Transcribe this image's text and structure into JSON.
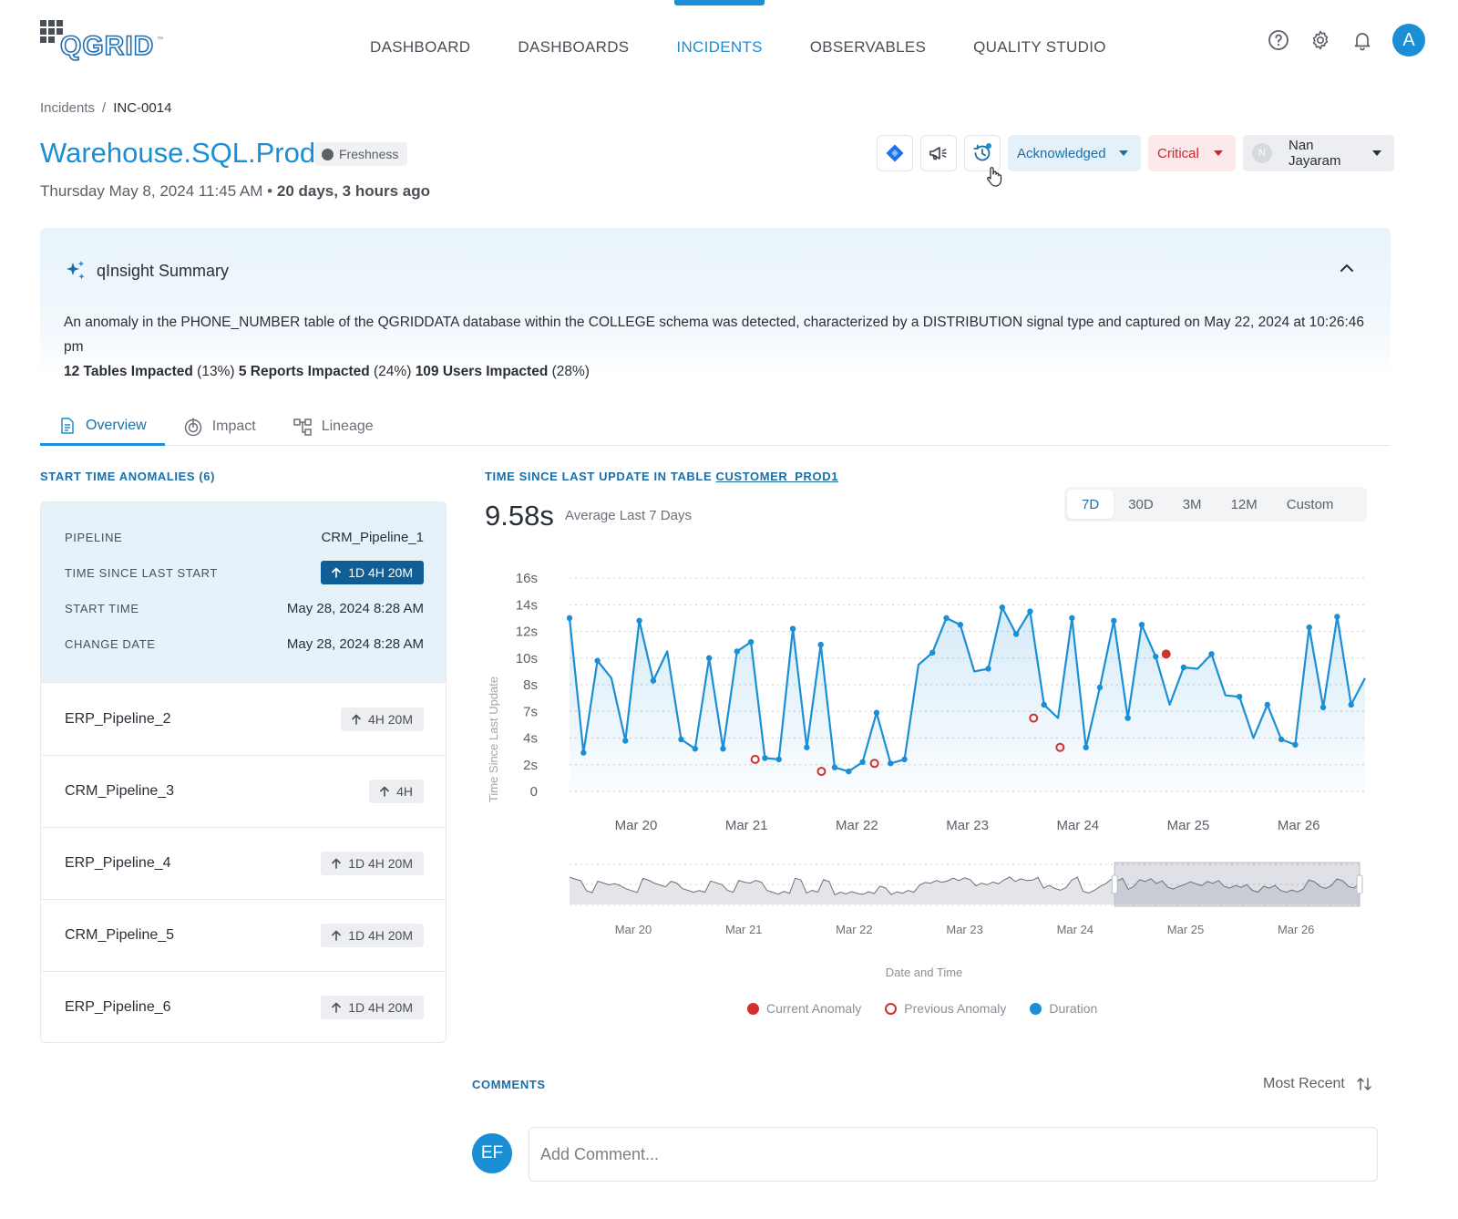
{
  "app": {
    "logo_text": "QGRID",
    "logo_tm": "™",
    "nav": [
      {
        "label": "DASHBOARD"
      },
      {
        "label": "DASHBOARDS"
      },
      {
        "label": "INCIDENTS"
      },
      {
        "label": "OBSERVABLES"
      },
      {
        "label": "QUALITY STUDIO"
      }
    ],
    "active_nav": "INCIDENTS",
    "icons": [
      "help-icon",
      "gear-icon",
      "bell-icon"
    ],
    "avatar_initial": "A"
  },
  "breadcrumb": {
    "parent": "Incidents",
    "sep": "/",
    "current": "INC-0014"
  },
  "incident": {
    "title": "Warehouse.SQL.Prod",
    "tag": "Freshness",
    "date": "Thursday May 8, 2024 11:45 AM",
    "bullet": "•",
    "age": "20 days, 3 hours ago",
    "status": "Acknowledged",
    "severity": "Critical",
    "assignee": "Nan Jayaram",
    "assignee_initial": "N"
  },
  "insight": {
    "title": "qInsight Summary",
    "text": "An anomaly in the PHONE_NUMBER table of the QGRIDDATA database within the COLLEGE schema was detected, characterized by a DISTRIBUTION signal type and captured on May 22, 2024 at 10:26:46 pm",
    "impacts": [
      {
        "label": "12 Tables Impacted",
        "pct": "(13%)"
      },
      {
        "label": "5 Reports Impacted",
        "pct": "(24%)"
      },
      {
        "label": "109 Users Impacted",
        "pct": "(28%)"
      }
    ]
  },
  "tabs": [
    {
      "label": "Overview",
      "icon": "document-icon"
    },
    {
      "label": "Impact",
      "icon": "impact-icon"
    },
    {
      "label": "Lineage",
      "icon": "lineage-icon"
    }
  ],
  "anomalies": {
    "title": "START TIME ANOMALIES (6)",
    "selected": {
      "pipeline_label": "PIPELINE",
      "pipeline": "CRM_Pipeline_1",
      "tsls_label": "TIME SINCE LAST START",
      "tsls": "1D 4H 20M",
      "start_label": "START TIME",
      "start": "May 28, 2024 8:28 AM",
      "change_label": "CHANGE DATE",
      "change": "May 28, 2024 8:28 AM"
    },
    "rows": [
      {
        "name": "ERP_Pipeline_2",
        "value": "4H 20M"
      },
      {
        "name": "CRM_Pipeline_3",
        "value": "4H"
      },
      {
        "name": "ERP_Pipeline_4",
        "value": "1D 4H 20M"
      },
      {
        "name": "CRM_Pipeline_5",
        "value": "1D 4H 20M"
      },
      {
        "name": "ERP_Pipeline_6",
        "value": "1D 4H 20M"
      }
    ]
  },
  "chart_section": {
    "title_prefix": "TIME SINCE LAST UPDATE IN TABLE",
    "table": "CUSTOMER_PROD1",
    "big_value": "9.58s",
    "big_label": "Average Last 7 Days",
    "ranges": [
      "7D",
      "30D",
      "3M",
      "12M",
      "Custom"
    ],
    "active_range": "7D"
  },
  "chart_data": {
    "type": "area",
    "ylabel": "Time Since Last Update",
    "xlabel": "Date and Time",
    "y_ticks": [
      "16s",
      "14s",
      "12s",
      "10s",
      "8s",
      "7s",
      "4s",
      "2s",
      "0"
    ],
    "x_ticks": [
      "Mar 20",
      "Mar 21",
      "Mar 22",
      "Mar 23",
      "Mar 24",
      "Mar 25",
      "Mar 26"
    ],
    "x_domain": [
      0,
      60
    ],
    "ylim": [
      0,
      16
    ],
    "grid": true,
    "legend_position": "bottom",
    "series": [
      {
        "name": "Duration",
        "values": [
          13,
          2.9,
          9.8,
          8.5,
          3.8,
          12.8,
          8.3,
          10.5,
          3.9,
          3.2,
          10,
          3.2,
          10.5,
          11.2,
          2.5,
          2.4,
          12.2,
          3.3,
          11,
          1.8,
          1.5,
          2.2,
          5.9,
          2.1,
          2.4,
          9.5,
          10.4,
          13,
          12.5,
          9,
          9.2,
          13.8,
          11.8,
          13.5,
          6.5,
          5.5,
          13,
          3.3,
          7.8,
          12.8,
          5.5,
          12.5,
          10.1,
          6.5,
          9.3,
          9.2,
          10.3,
          7.2,
          7.1,
          4,
          6.5,
          3.9,
          3.5,
          12.3,
          6.3,
          13.1,
          6.5,
          8.5
        ]
      },
      {
        "name": "Current Anomaly",
        "points": [
          [
            45,
            10.3
          ]
        ]
      },
      {
        "name": "Previous Anomaly",
        "points": [
          [
            14,
            2.4
          ],
          [
            19,
            1.5
          ],
          [
            23,
            2.1
          ],
          [
            35,
            5.5
          ],
          [
            37,
            3.3
          ]
        ]
      }
    ],
    "brush": {
      "x_ticks": [
        "Mar 20",
        "Mar 21",
        "Mar 22",
        "Mar 23",
        "Mar 24",
        "Mar 25",
        "Mar 26"
      ],
      "selected_from": 0.69,
      "selected_to": 1.0
    },
    "colors": {
      "line": "#1a8fd6",
      "current": "#d32f2f",
      "previous": "#d32f2f",
      "duration": "#1a8fd6"
    }
  },
  "comments": {
    "title": "COMMENTS",
    "sort": "Most Recent",
    "avatar": "EF",
    "placeholder": "Add Comment..."
  }
}
